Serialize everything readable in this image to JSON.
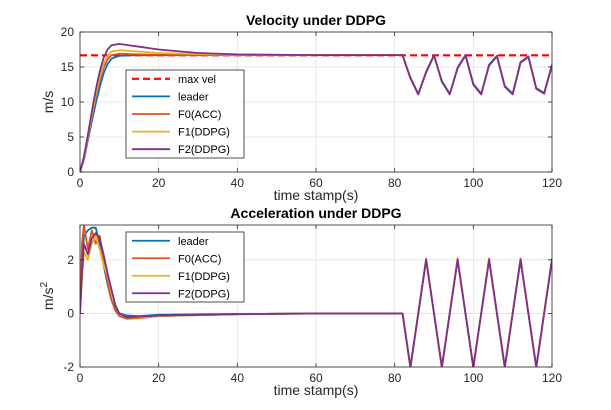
{
  "chart_data": [
    {
      "type": "line",
      "title": "Velocity under DDPG",
      "xlabel": "time stamp(s)",
      "ylabel": "m/s",
      "xlim": [
        0,
        120
      ],
      "ylim": [
        0,
        20
      ],
      "xticks": [
        0,
        20,
        40,
        60,
        80,
        100,
        120
      ],
      "yticks": [
        0,
        5,
        10,
        15,
        20
      ],
      "grid": true,
      "legend_position": "left-center",
      "series": [
        {
          "name": "max vel",
          "color": "#FF0000",
          "dashed": true,
          "x": [
            0,
            120
          ],
          "y": [
            16.67,
            16.67
          ]
        },
        {
          "name": "leader",
          "color": "#0072BD",
          "x": [
            0,
            1,
            2,
            3,
            4,
            5,
            6,
            7,
            8,
            10,
            15,
            20,
            30,
            40,
            60,
            80,
            82,
            84,
            86,
            88,
            90,
            92,
            94,
            96,
            98,
            100,
            102,
            104,
            106,
            108,
            110,
            112,
            114,
            116,
            118,
            120
          ],
          "y": [
            0,
            1.8,
            4.5,
            7.2,
            9.8,
            12.1,
            14.1,
            15.4,
            16.2,
            16.6,
            16.7,
            16.7,
            16.7,
            16.7,
            16.7,
            16.7,
            16.7,
            13.5,
            11.2,
            14.2,
            16.6,
            13.0,
            11.2,
            14.8,
            16.6,
            12.6,
            11.2,
            15.2,
            16.5,
            12.3,
            11.2,
            15.6,
            16.4,
            12.0,
            11.3,
            15.2
          ]
        },
        {
          "name": "F0(ACC)",
          "color": "#D95319",
          "x": [
            0,
            1,
            2,
            3,
            4,
            5,
            6,
            7,
            8,
            10,
            15,
            20,
            30,
            40,
            60,
            80,
            82,
            84,
            86,
            88,
            90,
            92,
            94,
            96,
            98,
            100,
            102,
            104,
            106,
            108,
            110,
            112,
            114,
            116,
            118,
            120
          ],
          "y": [
            0,
            2.0,
            4.8,
            7.8,
            10.6,
            13.0,
            14.9,
            16.1,
            16.7,
            16.9,
            16.8,
            16.75,
            16.7,
            16.7,
            16.7,
            16.7,
            16.7,
            13.4,
            11.1,
            14.3,
            16.7,
            12.9,
            11.1,
            14.9,
            16.7,
            12.5,
            11.1,
            15.3,
            16.6,
            12.2,
            11.1,
            15.7,
            16.5,
            11.9,
            11.2,
            15.3
          ]
        },
        {
          "name": "F1(DDPG)",
          "color": "#EDB120",
          "x": [
            0,
            1,
            2,
            3,
            4,
            5,
            6,
            7,
            8,
            10,
            15,
            20,
            30,
            40,
            60,
            80,
            82,
            84,
            86,
            88,
            90,
            92,
            94,
            96,
            98,
            100,
            102,
            104,
            106,
            108,
            110,
            112,
            114,
            116,
            118,
            120
          ],
          "y": [
            0,
            2.1,
            5.0,
            8.1,
            11.0,
            13.5,
            15.4,
            16.6,
            17.2,
            17.4,
            17.2,
            17.0,
            16.85,
            16.75,
            16.7,
            16.7,
            16.7,
            13.4,
            11.1,
            14.3,
            16.7,
            12.9,
            11.1,
            14.9,
            16.7,
            12.5,
            11.1,
            15.3,
            16.6,
            12.2,
            11.1,
            15.7,
            16.5,
            11.9,
            11.2,
            15.3
          ]
        },
        {
          "name": "F2(DDPG)",
          "color": "#7E2F8E",
          "x": [
            0,
            1,
            2,
            3,
            4,
            5,
            6,
            7,
            8,
            10,
            15,
            20,
            30,
            40,
            60,
            80,
            82,
            84,
            86,
            88,
            90,
            92,
            94,
            96,
            98,
            100,
            102,
            104,
            106,
            108,
            110,
            112,
            114,
            116,
            118,
            120
          ],
          "y": [
            0,
            2.2,
            5.3,
            8.6,
            11.7,
            14.3,
            16.3,
            17.5,
            18.1,
            18.3,
            17.9,
            17.5,
            17.0,
            16.8,
            16.7,
            16.7,
            16.7,
            13.4,
            11.1,
            14.3,
            16.7,
            12.9,
            11.1,
            14.9,
            16.7,
            12.5,
            11.1,
            15.3,
            16.6,
            12.2,
            11.1,
            15.7,
            16.5,
            11.9,
            11.2,
            15.3
          ]
        }
      ]
    },
    {
      "type": "line",
      "title": "Acceleration under DDPG",
      "xlabel": "time stamp(s)",
      "ylabel": "m/s",
      "ylabel_sup": "2",
      "xlim": [
        0,
        120
      ],
      "ylim": [
        -2,
        3.3
      ],
      "xticks": [
        0,
        20,
        40,
        60,
        80,
        100,
        120
      ],
      "yticks": [
        -2,
        0,
        2
      ],
      "grid": true,
      "legend_position": "top-left",
      "series": [
        {
          "name": "leader",
          "color": "#0072BD",
          "x": [
            0,
            0.5,
            1,
            2,
            3,
            4,
            5,
            6,
            7,
            8,
            9,
            10,
            12,
            15,
            20,
            40,
            60,
            80,
            82,
            84,
            86,
            88,
            90,
            92,
            94,
            96,
            98,
            100,
            102,
            104,
            106,
            108,
            110,
            112,
            114,
            116,
            118,
            120
          ],
          "y": [
            0,
            1.6,
            2.9,
            3.1,
            3.2,
            3.2,
            2.6,
            1.8,
            1.1,
            0.5,
            0.2,
            0.0,
            -0.08,
            -0.1,
            -0.05,
            -0.02,
            0.0,
            0.0,
            0.0,
            -2.0,
            0.0,
            2.0,
            0.0,
            -2.0,
            0.0,
            2.0,
            0.0,
            -2.0,
            0.0,
            2.0,
            0.0,
            -2.0,
            0.0,
            2.0,
            0.0,
            -2.0,
            0.0,
            2.0
          ]
        },
        {
          "name": "F0(ACC)",
          "color": "#D95319",
          "x": [
            0,
            0.5,
            1,
            2,
            3,
            4,
            5,
            6,
            7,
            8,
            9,
            10,
            12,
            15,
            20,
            40,
            60,
            80,
            82,
            84,
            86,
            88,
            90,
            92,
            94,
            96,
            98,
            100,
            102,
            104,
            106,
            108,
            110,
            112,
            114,
            116,
            118,
            120
          ],
          "y": [
            0,
            2.6,
            3.3,
            2.4,
            3.1,
            2.6,
            2.9,
            2.0,
            1.2,
            0.5,
            0.1,
            -0.1,
            -0.2,
            -0.18,
            -0.1,
            -0.03,
            0.0,
            0.0,
            0.0,
            -2.05,
            0.0,
            2.05,
            0.0,
            -2.05,
            0.0,
            2.05,
            0.0,
            -2.05,
            0.0,
            2.05,
            0.0,
            -2.05,
            0.0,
            2.05,
            0.0,
            -2.05,
            0.0,
            2.05
          ]
        },
        {
          "name": "F1(DDPG)",
          "color": "#EDB120",
          "x": [
            0,
            0.5,
            1,
            2,
            3,
            4,
            5,
            6,
            7,
            8,
            9,
            10,
            12,
            15,
            20,
            40,
            60,
            80,
            82,
            84,
            86,
            88,
            90,
            92,
            94,
            96,
            98,
            100,
            102,
            104,
            106,
            108,
            110,
            112,
            114,
            116,
            118,
            120
          ],
          "y": [
            0,
            1.2,
            2.3,
            2.0,
            2.6,
            2.9,
            2.4,
            1.8,
            1.4,
            0.8,
            0.3,
            0.0,
            -0.15,
            -0.15,
            -0.1,
            -0.03,
            0.0,
            0.0,
            0.0,
            -2.0,
            0.0,
            2.0,
            0.0,
            -2.0,
            0.0,
            2.0,
            0.0,
            -2.0,
            0.0,
            2.0,
            0.0,
            -2.0,
            0.0,
            2.0,
            0.0,
            -2.0,
            0.0,
            2.0
          ]
        },
        {
          "name": "F2(DDPG)",
          "color": "#7E2F8E",
          "x": [
            0,
            0.5,
            1,
            2,
            3,
            4,
            5,
            6,
            7,
            8,
            9,
            10,
            12,
            15,
            20,
            40,
            60,
            80,
            82,
            84,
            86,
            88,
            90,
            92,
            94,
            96,
            98,
            100,
            102,
            104,
            106,
            108,
            110,
            112,
            114,
            116,
            118,
            120
          ],
          "y": [
            0,
            1.5,
            2.6,
            2.2,
            2.8,
            3.0,
            2.8,
            2.2,
            1.5,
            0.9,
            0.3,
            0.0,
            -0.15,
            -0.12,
            -0.08,
            -0.03,
            0.0,
            0.0,
            0.0,
            -2.0,
            0.0,
            2.0,
            0.0,
            -2.0,
            0.0,
            2.0,
            0.0,
            -2.0,
            0.0,
            2.0,
            0.0,
            -2.0,
            0.0,
            2.0,
            0.0,
            -2.0,
            0.0,
            2.0
          ]
        }
      ]
    }
  ]
}
